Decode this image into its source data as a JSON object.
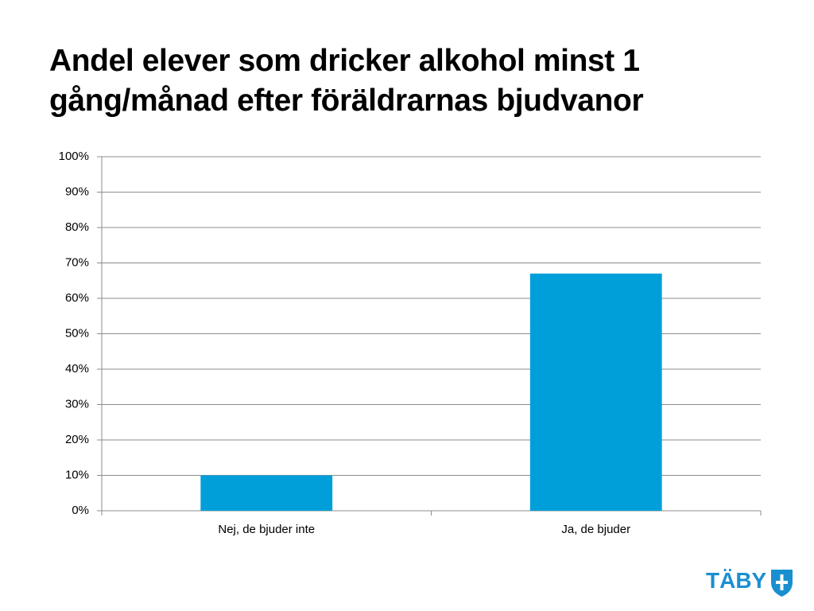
{
  "chart_data": {
    "type": "bar",
    "title": "Andel elever som dricker alkohol minst 1 gång/månad efter föräldrarnas bjudvanor",
    "categories": [
      "Nej, de bjuder inte",
      "Ja, de bjuder"
    ],
    "values": [
      10,
      67
    ],
    "color": "#009fda",
    "ylim": [
      0,
      100
    ],
    "yticks": [
      {
        "value": 0,
        "label": "0%"
      },
      {
        "value": 10,
        "label": "10%"
      },
      {
        "value": 20,
        "label": "20%"
      },
      {
        "value": 30,
        "label": "30%"
      },
      {
        "value": 40,
        "label": "40%"
      },
      {
        "value": 50,
        "label": "50%"
      },
      {
        "value": 60,
        "label": "60%"
      },
      {
        "value": 70,
        "label": "70%"
      },
      {
        "value": 80,
        "label": "80%"
      },
      {
        "value": 90,
        "label": "90%"
      },
      {
        "value": 100,
        "label": "100%"
      }
    ],
    "grid": true
  },
  "logo": "TÄBY"
}
